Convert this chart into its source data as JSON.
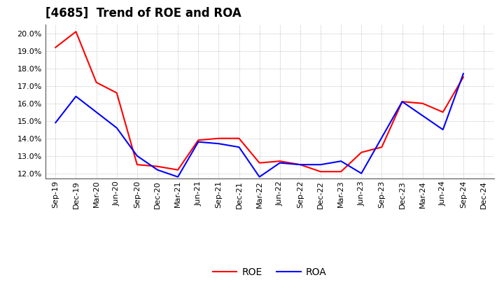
{
  "title": "[4685]  Trend of ROE and ROA",
  "all_labels": [
    "Sep-19",
    "Dec-19",
    "Mar-20",
    "Jun-20",
    "Sep-20",
    "Dec-20",
    "Mar-21",
    "Jun-21",
    "Sep-21",
    "Dec-21",
    "Mar-22",
    "Jun-22",
    "Sep-22",
    "Dec-22",
    "Mar-23",
    "Jun-23",
    "Sep-23",
    "Dec-23",
    "Mar-24",
    "Jun-24",
    "Sep-24",
    "Dec-24"
  ],
  "roe_labels": [
    "Sep-19",
    "Dec-19",
    "Mar-20",
    "Jun-20",
    "Sep-20",
    "Dec-20",
    "Mar-21",
    "Jun-21",
    "Sep-21",
    "Dec-21",
    "Mar-22",
    "Jun-22",
    "Sep-22",
    "Dec-22",
    "Mar-23",
    "Jun-23",
    "Sep-23",
    "Dec-23",
    "Mar-24",
    "Jun-24",
    "Sep-24"
  ],
  "roe_y": [
    19.2,
    20.1,
    17.2,
    16.6,
    12.5,
    12.4,
    12.2,
    13.9,
    14.0,
    14.0,
    12.6,
    12.7,
    12.5,
    12.1,
    12.1,
    13.2,
    13.5,
    16.1,
    16.0,
    15.5,
    17.5
  ],
  "roa_labels": [
    "Sep-19",
    "Dec-19",
    "Jun-20",
    "Sep-20",
    "Dec-20",
    "Mar-21",
    "Jun-21",
    "Sep-21",
    "Dec-21",
    "Mar-22",
    "Jun-22",
    "Sep-22",
    "Dec-22",
    "Mar-23",
    "Jun-23",
    "Dec-23",
    "Jun-24",
    "Sep-24"
  ],
  "roa_y": [
    14.9,
    16.4,
    14.6,
    13.0,
    12.2,
    11.8,
    13.8,
    13.7,
    13.5,
    11.8,
    12.6,
    12.5,
    12.5,
    12.7,
    12.0,
    16.1,
    14.5,
    17.7
  ],
  "roe_color": "#ff0000",
  "roa_color": "#0000ff",
  "ylim": [
    11.7,
    20.5
  ],
  "yticks": [
    12.0,
    13.0,
    14.0,
    15.0,
    16.0,
    17.0,
    18.0,
    19.0,
    20.0
  ],
  "background_color": "#ffffff",
  "grid_color": "#888888",
  "title_fontsize": 12,
  "legend_fontsize": 10,
  "axis_fontsize": 8
}
